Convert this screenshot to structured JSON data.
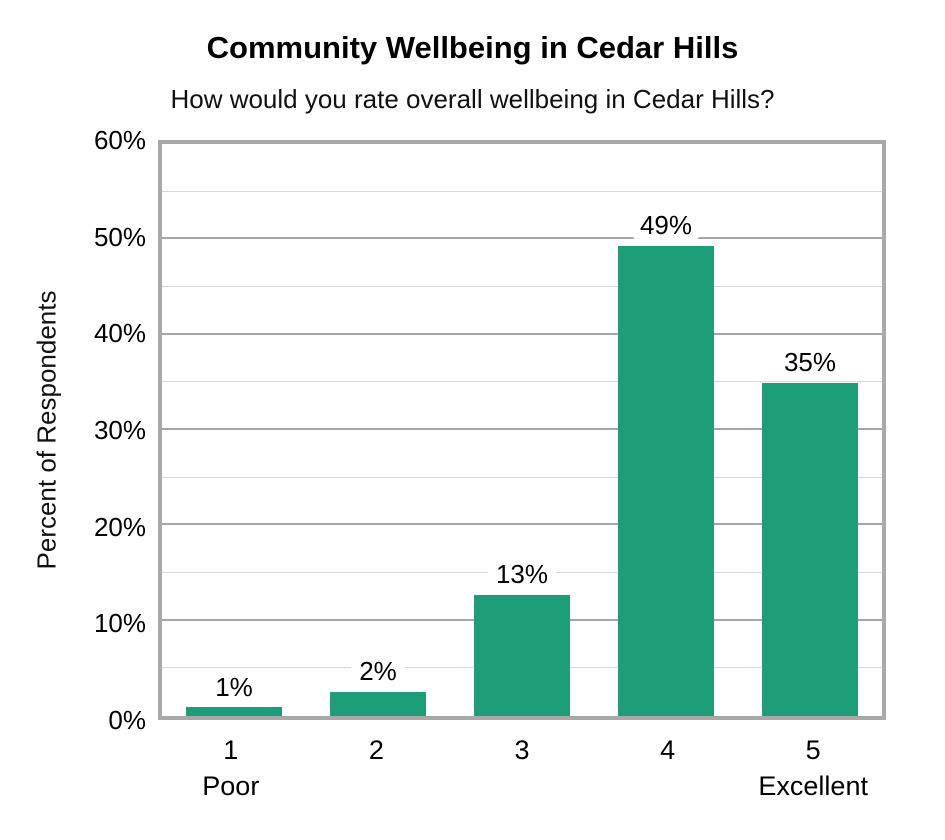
{
  "chart_data": {
    "type": "bar",
    "title": "Community Wellbeing in Cedar Hills",
    "subtitle": "How would you rate overall wellbeing in Cedar Hills?",
    "ylabel": "Percent of Respondents",
    "xlabel": "",
    "categories": [
      "1",
      "2",
      "3",
      "4",
      "5"
    ],
    "category_sublabels": [
      "Poor",
      "",
      "",
      "",
      "Excellent"
    ],
    "values": [
      1,
      2,
      13,
      49,
      35
    ],
    "plotted_values": [
      0.9,
      2.5,
      12.7,
      49.3,
      34.9
    ],
    "data_labels": [
      "1%",
      "2%",
      "13%",
      "49%",
      "35%"
    ],
    "yticks": [
      "0%",
      "10%",
      "20%",
      "30%",
      "40%",
      "50%",
      "60%"
    ],
    "ylim": [
      0,
      60
    ],
    "ytick_step": 10,
    "minor_gridline_step": 5,
    "grid": true,
    "legend": "none",
    "colors": {
      "bar_fill": "#1e9e78",
      "major_gridline": "#a6a6a6",
      "minor_gridline": "#d9d9d9",
      "plot_border": "#a9a9a9",
      "text": "#000000",
      "background": "#ffffff"
    }
  }
}
